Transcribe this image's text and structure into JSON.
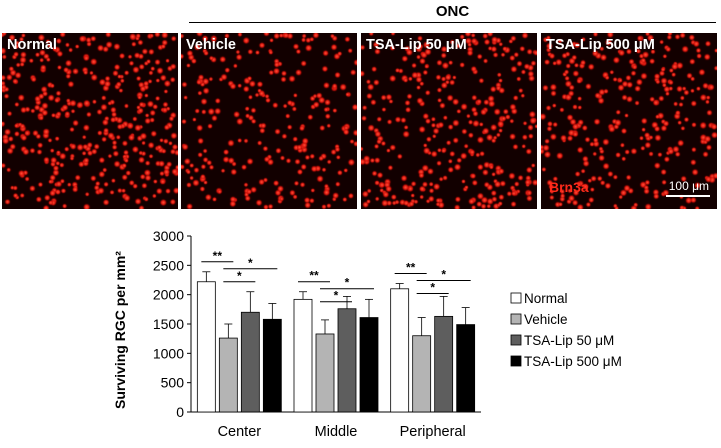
{
  "header": {
    "group_label": "ONC"
  },
  "panels": [
    {
      "label": "Normal",
      "density": 0.95
    },
    {
      "label": "Vehicle",
      "density": 0.62
    },
    {
      "label": "TSA-Lip 50 μM",
      "density": 0.8
    },
    {
      "label": "TSA-Lip 500 μM",
      "density": 0.73
    }
  ],
  "stain_label": "Brn3a",
  "scalebar_label": "100 μm",
  "colors": {
    "cell": "#e8190f",
    "background": "#120000"
  },
  "chart_data": {
    "type": "bar",
    "title": "",
    "xlabel": "",
    "ylabel": "Surviving RGC per mm²",
    "ylim": [
      0,
      3000
    ],
    "yticks": [
      0,
      500,
      1000,
      1500,
      2000,
      2500,
      3000
    ],
    "categories": [
      "Center",
      "Middle",
      "Peripheral"
    ],
    "series": [
      {
        "name": "Normal",
        "color": "#ffffff",
        "values": [
          2220,
          1920,
          2100
        ],
        "errors": [
          170,
          130,
          90
        ]
      },
      {
        "name": "Vehicle",
        "color": "#b4b4b4",
        "values": [
          1260,
          1330,
          1300
        ],
        "errors": [
          240,
          240,
          310
        ]
      },
      {
        "name": "TSA-Lip 50 μM",
        "color": "#5e5e5e",
        "values": [
          1700,
          1760,
          1630
        ],
        "errors": [
          350,
          210,
          340
        ]
      },
      {
        "name": "TSA-Lip 500 μM",
        "color": "#000000",
        "values": [
          1580,
          1610,
          1490
        ],
        "errors": [
          270,
          310,
          290
        ]
      }
    ],
    "significance": [
      {
        "category": 0,
        "from": 0,
        "to": 1,
        "label": "**"
      },
      {
        "category": 0,
        "from": 1,
        "to": 2,
        "label": "*"
      },
      {
        "category": 0,
        "from": 1,
        "to": 3,
        "label": "*"
      },
      {
        "category": 1,
        "from": 0,
        "to": 1,
        "label": "**"
      },
      {
        "category": 1,
        "from": 1,
        "to": 2,
        "label": "*"
      },
      {
        "category": 1,
        "from": 1,
        "to": 3,
        "label": "*"
      },
      {
        "category": 2,
        "from": 0,
        "to": 1,
        "label": "**"
      },
      {
        "category": 2,
        "from": 1,
        "to": 2,
        "label": "*"
      },
      {
        "category": 2,
        "from": 1,
        "to": 3,
        "label": "*"
      }
    ],
    "legend_position": "right",
    "grid": false
  }
}
